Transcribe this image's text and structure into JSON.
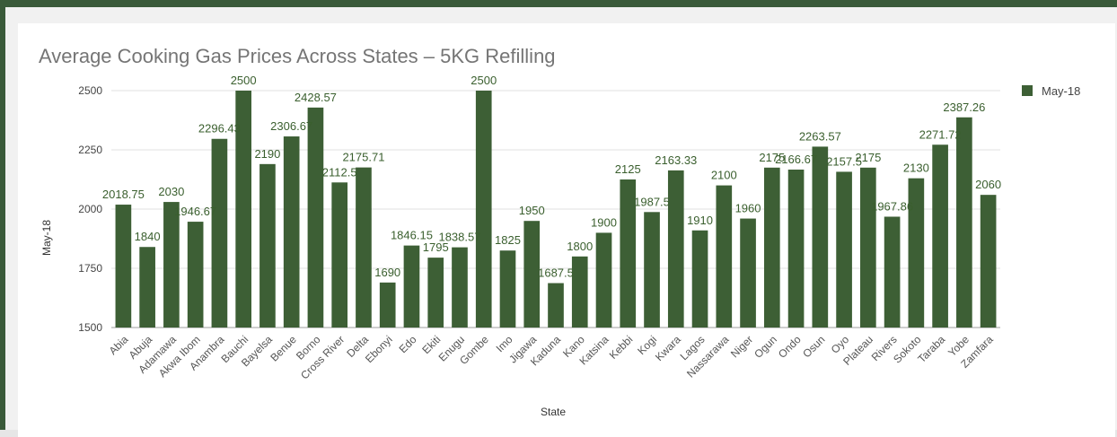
{
  "chart_data": {
    "type": "bar",
    "title": "Average Cooking Gas Prices Across States – 5KG Refilling",
    "xlabel": "State",
    "ylabel": "May-18",
    "ylim": [
      1500,
      2500
    ],
    "yticks": [
      1500,
      1750,
      2000,
      2250,
      2500
    ],
    "grid": true,
    "legend_position": "right",
    "bar_color": "#3d5f35",
    "categories": [
      "Abia",
      "Abuja",
      "Adamawa",
      "Akwa Ibom",
      "Anambra",
      "Bauchi",
      "Bayelsa",
      "Benue",
      "Borno",
      "Cross River",
      "Delta",
      "Ebonyi",
      "Edo",
      "Ekiti",
      "Enugu",
      "Gombe",
      "Imo",
      "Jigawa",
      "Kaduna",
      "Kano",
      "Katsina",
      "Kebbi",
      "Kogi",
      "Kwara",
      "Lagos",
      "Nassarawa",
      "Niger",
      "Ogun",
      "Ondo",
      "Osun",
      "Oyo",
      "Plateau",
      "Rivers",
      "Sokoto",
      "Taraba",
      "Yobe",
      "Zamfara"
    ],
    "series": [
      {
        "name": "May-18",
        "values": [
          2018.75,
          1840,
          2030,
          1946.67,
          2296.43,
          2500,
          2190,
          2306.67,
          2428.57,
          2112.5,
          2175.71,
          1690,
          1846.15,
          1795,
          1838.57,
          2500,
          1825,
          1950,
          1687.5,
          1800,
          1900,
          2125,
          1987.5,
          2163.33,
          1910,
          2100,
          1960,
          2175,
          2166.67,
          2263.57,
          2157.5,
          2175,
          1967.86,
          2130,
          2271.72,
          2387.26,
          2060
        ]
      }
    ],
    "data_labels": [
      "2018.75",
      "1840",
      "2030",
      "1946.67",
      "2296.43",
      "2500",
      "2190",
      "2306.67",
      "2428.57",
      "2112.5",
      "2175.71",
      "1690",
      "1846.15",
      "1795",
      "1838.57",
      "2500",
      "1825",
      "1950",
      "1687.5",
      "1800",
      "1900",
      "2125",
      "1987.5",
      "2163.33",
      "1910",
      "2100",
      "1960",
      "2175",
      "2166.67",
      "2263.57",
      "2157.5",
      "2175",
      "1967.86",
      "2130",
      "2271.72",
      "2387.26",
      "2060"
    ]
  }
}
